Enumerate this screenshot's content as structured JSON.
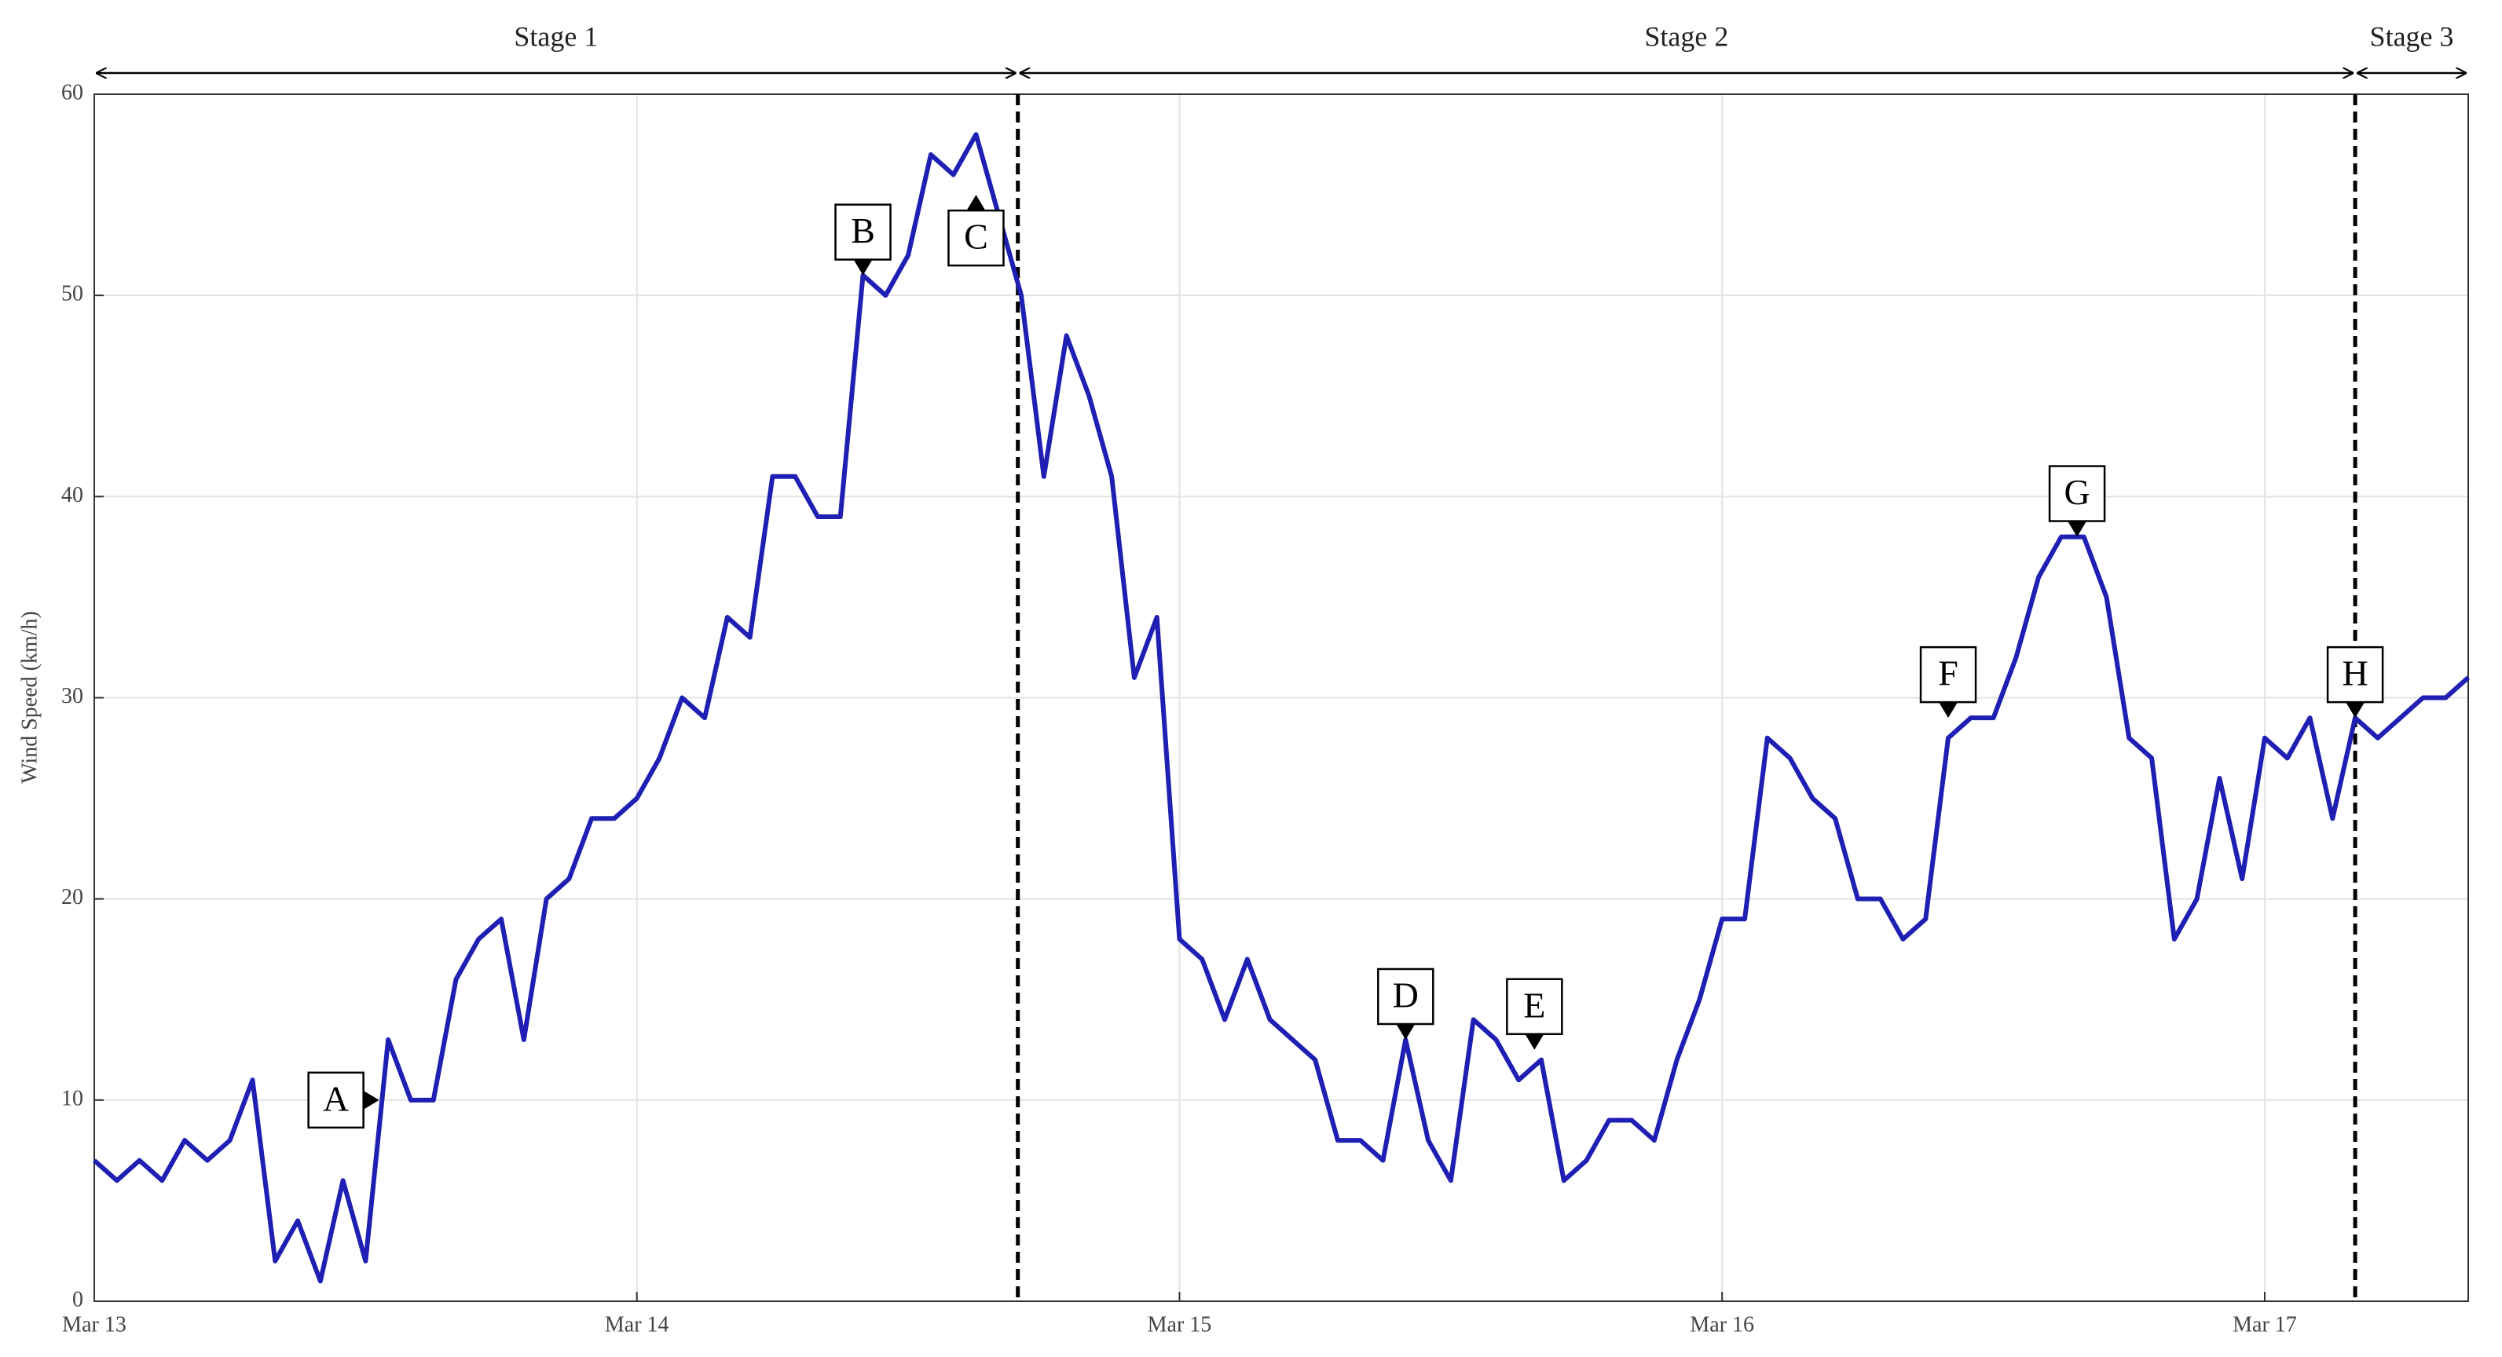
{
  "chart_data": {
    "type": "line",
    "y_label": "Wind Speed (km/h)",
    "x": [
      0,
      1,
      2,
      3,
      4,
      5,
      6,
      7,
      8,
      9,
      10,
      11,
      12,
      13,
      14,
      15,
      16,
      17,
      18,
      19,
      20,
      21,
      22,
      23,
      24,
      25,
      26,
      27,
      28,
      29,
      30,
      31,
      32,
      33,
      34,
      35,
      36,
      37,
      38,
      39,
      40,
      41,
      42,
      43,
      44,
      45,
      46,
      47,
      48,
      49,
      50,
      51,
      52,
      53,
      54,
      55,
      56,
      57,
      58,
      59,
      60,
      61,
      62,
      63,
      64,
      65,
      66,
      67,
      68,
      69,
      70,
      71,
      72,
      73,
      74,
      75,
      76,
      77,
      78,
      79,
      80,
      81,
      82,
      83,
      84,
      85,
      86,
      87,
      88,
      89,
      90,
      91,
      92,
      93,
      94,
      95,
      96,
      97,
      98,
      99,
      100,
      101,
      102,
      103,
      104,
      105
    ],
    "series": [
      {
        "color": "#1f1fb4",
        "values": [
          7,
          6,
          7,
          6,
          8,
          7,
          8,
          11,
          2,
          4,
          1,
          6,
          2,
          13,
          10,
          10,
          16,
          18,
          19,
          13,
          20,
          21,
          24,
          24,
          25,
          27,
          30,
          29,
          34,
          33,
          41,
          41,
          39,
          39,
          51,
          50,
          52,
          57,
          56,
          58,
          54,
          50,
          41,
          48,
          45,
          41,
          31,
          34,
          18,
          17,
          14,
          17,
          14,
          13,
          12,
          8,
          8,
          7,
          13,
          8,
          6,
          14,
          13,
          11,
          12,
          6,
          7,
          9,
          9,
          8,
          12,
          15,
          19,
          19,
          28,
          27,
          25,
          24,
          20,
          20,
          18,
          19,
          28,
          29,
          29,
          32,
          36,
          38,
          38,
          35,
          28,
          27,
          18,
          20,
          26,
          21,
          28,
          27,
          29,
          24,
          29,
          28,
          29,
          30,
          30,
          31
        ]
      }
    ],
    "xlim": [
      0,
      105
    ],
    "xticks": [
      {
        "value": 0,
        "label": "Mar 13"
      },
      {
        "value": 24,
        "label": "Mar 14"
      },
      {
        "value": 48,
        "label": "Mar 15"
      },
      {
        "value": 72,
        "label": "Mar 16"
      },
      {
        "value": 96,
        "label": "Mar 17"
      }
    ],
    "ylim": [
      0,
      60
    ],
    "yticks": [
      0,
      10,
      20,
      30,
      40,
      50,
      60
    ],
    "grid": true,
    "stages": [
      {
        "label": "Stage 1",
        "start": 0,
        "end": 40.85
      },
      {
        "label": "Stage 2",
        "start": 40.85,
        "end": 100
      },
      {
        "label": "Stage 3",
        "start": 100,
        "end": 105
      }
    ],
    "annotations": [
      {
        "label": "A",
        "x": 12.6,
        "y": 10,
        "pointer": "right"
      },
      {
        "label": "B",
        "x": 34,
        "y": 51,
        "pointer": "down"
      },
      {
        "label": "C",
        "x": 39,
        "y": 55,
        "pointer": "up"
      },
      {
        "label": "D",
        "x": 58,
        "y": 13,
        "pointer": "down"
      },
      {
        "label": "E",
        "x": 63.7,
        "y": 12.5,
        "pointer": "down"
      },
      {
        "label": "F",
        "x": 82,
        "y": 29,
        "pointer": "down"
      },
      {
        "label": "G",
        "x": 87.7,
        "y": 38,
        "pointer": "down"
      },
      {
        "label": "H",
        "x": 100,
        "y": 29,
        "pointer": "down"
      }
    ]
  }
}
